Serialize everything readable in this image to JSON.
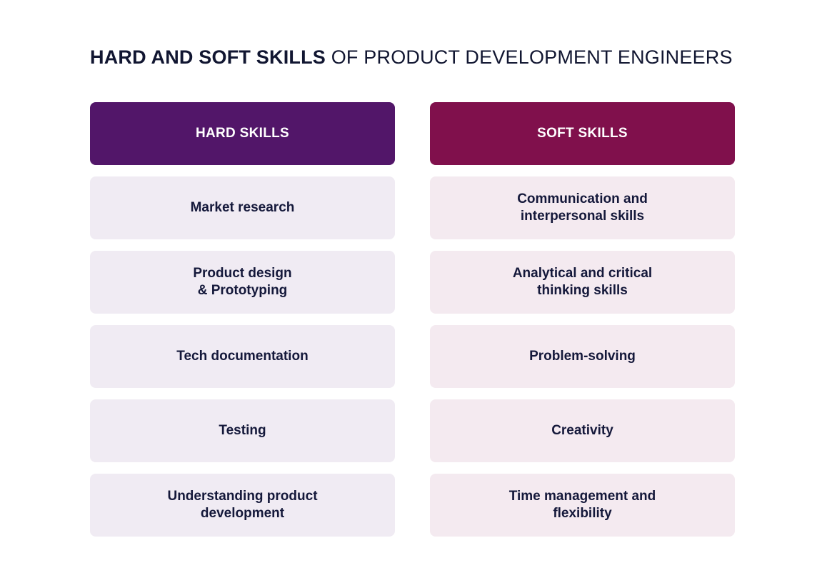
{
  "title": {
    "bold": "HARD AND SOFT SKILLS",
    "light": " OF PRODUCT DEVELOPMENT ENGINEERS"
  },
  "colors": {
    "hard_header": "#521669",
    "soft_header": "#80104c",
    "hard_item_bg": "#f0ebf3",
    "soft_item_bg": "#f4eaf0",
    "text": "#14183a"
  },
  "hard": {
    "header": "HARD SKILLS",
    "items": [
      "Market research",
      "Product design\n& Prototyping",
      "Tech documentation",
      "Testing",
      "Understanding product\ndevelopment"
    ]
  },
  "soft": {
    "header": "SOFT SKILLS",
    "items": [
      "Communication and\ninterpersonal skills",
      "Analytical and critical\nthinking skills",
      "Problem-solving",
      "Creativity",
      "Time management and\nflexibility"
    ]
  }
}
